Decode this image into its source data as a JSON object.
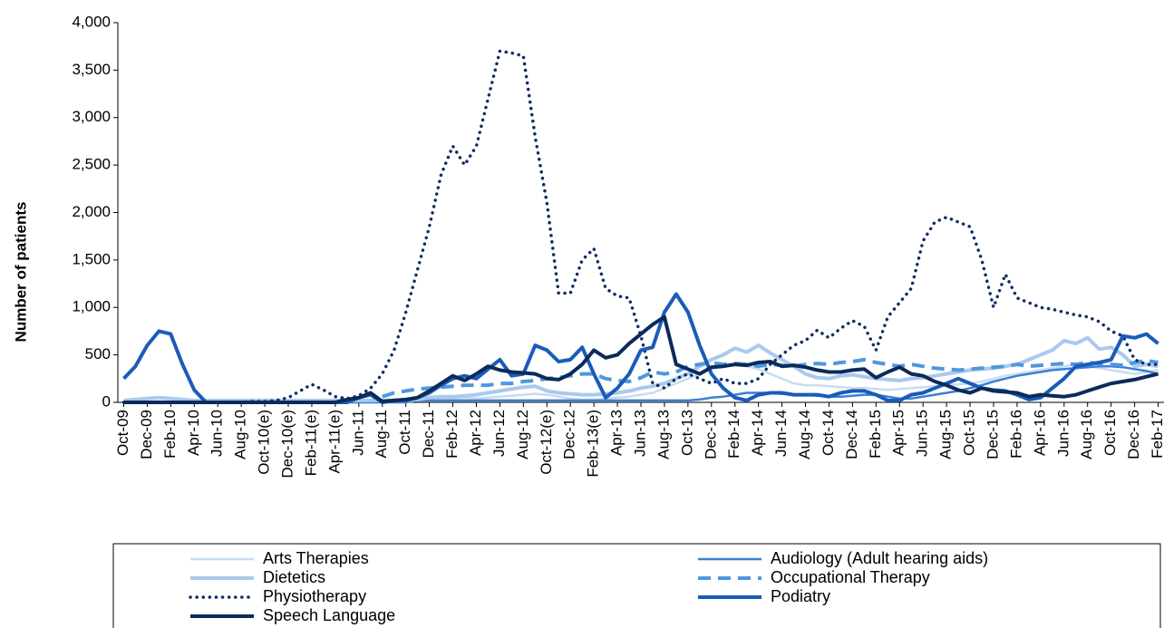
{
  "chart_data": {
    "type": "line",
    "y_label": "Number of patients",
    "categories": [
      "Oct-09",
      null,
      "Dec-09",
      null,
      "Feb-10",
      null,
      "Apr-10",
      null,
      "Jun-10",
      null,
      "Aug-10",
      null,
      "Oct-10(e)",
      null,
      "Dec-10(e)",
      null,
      "Feb-11(e)",
      null,
      "Apr-11(e)",
      null,
      "Jun-11",
      null,
      "Aug-11",
      null,
      "Oct-11",
      null,
      "Dec-11",
      null,
      "Feb-12",
      null,
      "Apr-12",
      null,
      "Jun-12",
      null,
      "Aug-12",
      null,
      "Oct-12(e)",
      null,
      "Dec-12",
      null,
      "Feb-13(e)",
      null,
      "Apr-13",
      null,
      "Jun-13",
      null,
      "Aug-13",
      null,
      "Oct-13",
      null,
      "Dec-13",
      null,
      "Feb-14",
      null,
      "Apr-14",
      null,
      "Jun-14",
      null,
      "Aug-14",
      null,
      "Oct-14",
      null,
      "Dec-14",
      null,
      "Feb-15",
      null,
      "Apr-15",
      null,
      "Jun-15",
      null,
      "Aug-15",
      null,
      "Oct-15",
      null,
      "Dec-15",
      null,
      "Feb-16",
      null,
      "Apr-16",
      null,
      "Jun-16",
      null,
      "Aug-16",
      null,
      "Oct-16",
      null,
      "Dec-16",
      null,
      "Feb-17"
    ],
    "ylim": [
      0,
      4000
    ],
    "yticks": [
      0,
      500,
      {
        "value": 1000,
        "label": "1,000"
      },
      {
        "value": 1500,
        "label": "1,500"
      },
      {
        "value": 2000,
        "label": "2,000"
      },
      {
        "value": 2500,
        "label": "2,500"
      },
      {
        "value": 3000,
        "label": "3,000"
      },
      {
        "value": 3500,
        "label": "3,500"
      },
      {
        "value": 4000,
        "label": "4,000"
      }
    ],
    "grid": false,
    "legend": "bottom",
    "series": [
      {
        "name": "Arts Therapies",
        "color": "#c8dcf0",
        "width": 2.5,
        "style": "solid",
        "values": [
          10,
          10,
          10,
          10,
          10,
          10,
          10,
          10,
          10,
          10,
          10,
          10,
          10,
          10,
          10,
          10,
          10,
          10,
          10,
          10,
          10,
          10,
          10,
          10,
          10,
          20,
          30,
          40,
          40,
          50,
          40,
          50,
          60,
          70,
          80,
          90,
          80,
          60,
          40,
          30,
          30,
          40,
          50,
          60,
          80,
          100,
          150,
          200,
          250,
          300,
          350,
          380,
          400,
          380,
          350,
          300,
          250,
          200,
          180,
          180,
          170,
          160,
          150,
          150,
          140,
          130,
          140,
          150,
          160,
          170,
          180,
          190,
          200,
          220,
          250,
          280,
          300,
          320,
          340,
          360,
          380,
          400,
          380,
          360,
          340,
          320,
          300,
          320,
          340
        ]
      },
      {
        "name": "Audiology (Adult hearing aids)",
        "color": "#3a7fd5",
        "width": 2.5,
        "style": "solid",
        "values": [
          0,
          0,
          0,
          0,
          0,
          0,
          0,
          0,
          0,
          0,
          0,
          0,
          0,
          0,
          0,
          0,
          0,
          0,
          0,
          0,
          0,
          0,
          0,
          0,
          0,
          20,
          20,
          20,
          20,
          20,
          20,
          20,
          20,
          20,
          20,
          20,
          20,
          20,
          20,
          20,
          20,
          20,
          20,
          20,
          20,
          20,
          20,
          20,
          20,
          30,
          50,
          60,
          80,
          100,
          100,
          100,
          90,
          80,
          80,
          70,
          60,
          60,
          70,
          80,
          80,
          60,
          40,
          40,
          60,
          80,
          100,
          120,
          150,
          180,
          220,
          250,
          280,
          300,
          320,
          340,
          350,
          360,
          370,
          380,
          380,
          370,
          350,
          330,
          300
        ]
      },
      {
        "name": "Dietetics",
        "color": "#a9c9ee",
        "width": 4,
        "style": "solid",
        "values": [
          20,
          30,
          40,
          50,
          40,
          30,
          20,
          20,
          20,
          20,
          20,
          20,
          20,
          20,
          20,
          20,
          20,
          20,
          20,
          20,
          20,
          20,
          20,
          20,
          20,
          30,
          50,
          60,
          60,
          70,
          80,
          100,
          120,
          140,
          160,
          170,
          120,
          100,
          90,
          80,
          80,
          90,
          100,
          120,
          150,
          170,
          200,
          250,
          300,
          380,
          450,
          500,
          570,
          530,
          600,
          520,
          450,
          380,
          300,
          260,
          250,
          280,
          290,
          270,
          250,
          240,
          230,
          250,
          260,
          280,
          300,
          320,
          340,
          350,
          360,
          380,
          400,
          450,
          500,
          550,
          650,
          620,
          680,
          560,
          580,
          500,
          380,
          400,
          380
        ]
      },
      {
        "name": "Occupational Therapy",
        "color": "#4f97e0",
        "width": 4,
        "style": "dashed",
        "values": [
          null,
          null,
          null,
          null,
          null,
          null,
          null,
          null,
          null,
          null,
          null,
          null,
          null,
          null,
          null,
          null,
          null,
          null,
          null,
          null,
          null,
          null,
          60,
          100,
          120,
          140,
          150,
          160,
          170,
          180,
          180,
          180,
          200,
          200,
          220,
          230,
          250,
          260,
          280,
          300,
          300,
          250,
          230,
          220,
          260,
          320,
          300,
          320,
          380,
          400,
          420,
          400,
          410,
          400,
          380,
          400,
          390,
          380,
          400,
          410,
          400,
          420,
          430,
          450,
          420,
          400,
          380,
          400,
          380,
          360,
          350,
          340,
          350,
          360,
          370,
          380,
          400,
          380,
          390,
          400,
          410,
          400,
          420,
          410,
          400,
          390,
          420,
          440,
          420
        ]
      },
      {
        "name": "Physiotherapy",
        "color": "#0f2d63",
        "width": 3.5,
        "style": "dotted",
        "values": [
          0,
          0,
          0,
          0,
          0,
          0,
          0,
          0,
          0,
          0,
          0,
          10,
          10,
          20,
          50,
          120,
          190,
          130,
          60,
          40,
          70,
          150,
          300,
          550,
          950,
          1400,
          1850,
          2400,
          2700,
          2500,
          2700,
          3200,
          3700,
          3680,
          3650,
          2800,
          2100,
          1150,
          1150,
          1500,
          1620,
          1200,
          1120,
          1100,
          700,
          200,
          150,
          250,
          300,
          250,
          200,
          250,
          200,
          200,
          250,
          400,
          500,
          600,
          650,
          760,
          680,
          780,
          860,
          800,
          550,
          900,
          1050,
          1200,
          1700,
          1900,
          1950,
          1900,
          1850,
          1500,
          1000,
          1350,
          1100,
          1050,
          1000,
          980,
          950,
          920,
          900,
          850,
          750,
          700,
          450,
          400,
          400
        ]
      },
      {
        "name": "Podiatry",
        "color": "#1a5cb8",
        "width": 4,
        "style": "solid",
        "values": [
          250,
          380,
          600,
          750,
          720,
          400,
          130,
          0,
          0,
          0,
          0,
          0,
          0,
          0,
          0,
          0,
          0,
          0,
          0,
          0,
          50,
          80,
          0,
          20,
          20,
          50,
          100,
          180,
          250,
          280,
          250,
          350,
          450,
          280,
          300,
          600,
          550,
          430,
          450,
          580,
          300,
          50,
          150,
          300,
          550,
          580,
          950,
          1140,
          950,
          600,
          300,
          150,
          50,
          20,
          80,
          100,
          100,
          80,
          80,
          80,
          60,
          100,
          120,
          120,
          80,
          20,
          20,
          80,
          100,
          150,
          200,
          250,
          200,
          150,
          130,
          120,
          80,
          30,
          50,
          150,
          250,
          380,
          400,
          420,
          450,
          700,
          680,
          720,
          620
        ]
      },
      {
        "name": "Speech Language",
        "color": "#0c2a5a",
        "width": 4,
        "style": "solid",
        "values": [
          0,
          0,
          0,
          0,
          0,
          0,
          0,
          0,
          0,
          0,
          0,
          0,
          0,
          0,
          0,
          0,
          0,
          0,
          0,
          30,
          50,
          100,
          10,
          20,
          30,
          50,
          120,
          200,
          280,
          230,
          300,
          380,
          340,
          320,
          310,
          300,
          250,
          240,
          300,
          400,
          550,
          470,
          500,
          620,
          720,
          820,
          900,
          400,
          350,
          300,
          370,
          380,
          400,
          390,
          420,
          430,
          380,
          390,
          370,
          340,
          320,
          320,
          340,
          350,
          260,
          320,
          370,
          300,
          280,
          220,
          180,
          130,
          100,
          150,
          120,
          110,
          100,
          60,
          80,
          70,
          60,
          80,
          120,
          160,
          200,
          220,
          240,
          270,
          300
        ]
      }
    ]
  }
}
